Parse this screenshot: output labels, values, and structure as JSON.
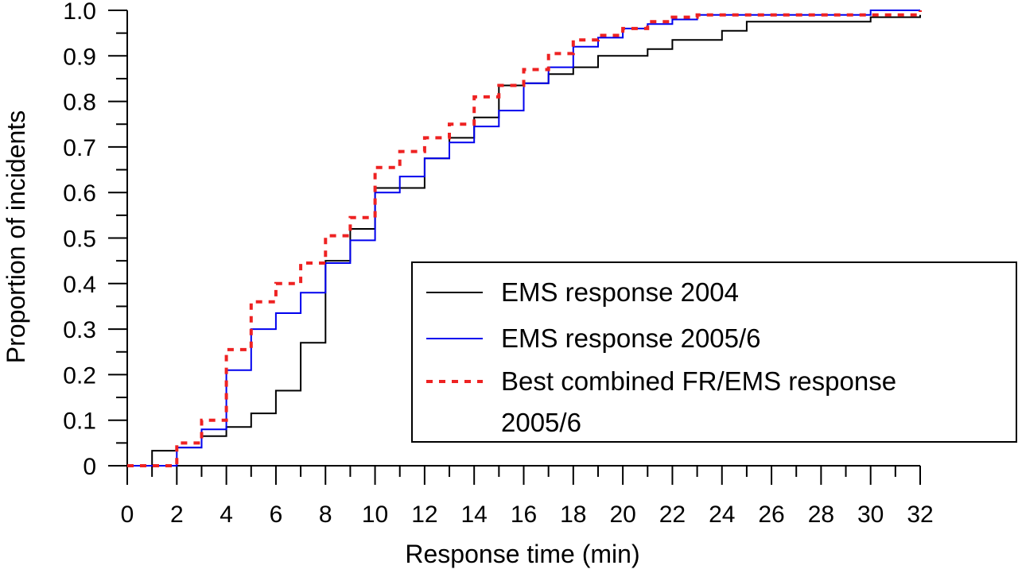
{
  "chart_data": {
    "type": "line",
    "step": true,
    "xlabel": "Response time (min)",
    "ylabel": "Proportion of incidents",
    "xlim": [
      0,
      32
    ],
    "ylim": [
      0,
      1.0
    ],
    "x_ticks": [
      "0",
      "2",
      "4",
      "6",
      "8",
      "10",
      "12",
      "14",
      "16",
      "18",
      "20",
      "22",
      "24",
      "26",
      "28",
      "30",
      "32"
    ],
    "y_ticks": [
      "0",
      "0.1",
      "0.2",
      "0.3",
      "0.4",
      "0.5",
      "0.6",
      "0.7",
      "0.8",
      "0.9",
      "1.0"
    ],
    "grid": false,
    "legend_position": "lower-right",
    "series": [
      {
        "name": "EMS response 2004",
        "color": "#000000",
        "style": "solid",
        "x": [
          0,
          1,
          2,
          3,
          4,
          5,
          6,
          7,
          8,
          9,
          10,
          11,
          12,
          13,
          14,
          15,
          16,
          17,
          18,
          19,
          20,
          21,
          22,
          23,
          24,
          25,
          30,
          32
        ],
        "y": [
          0,
          0.033,
          0.04,
          0.065,
          0.085,
          0.115,
          0.165,
          0.27,
          0.45,
          0.52,
          0.61,
          0.61,
          0.675,
          0.72,
          0.765,
          0.835,
          0.84,
          0.86,
          0.875,
          0.9,
          0.9,
          0.915,
          0.935,
          0.935,
          0.955,
          0.975,
          0.985,
          0.99
        ]
      },
      {
        "name": "EMS response 2005/6",
        "color": "#0000ee",
        "style": "solid",
        "x": [
          0,
          2,
          3,
          4,
          5,
          6,
          7,
          8,
          9,
          10,
          11,
          12,
          13,
          14,
          15,
          16,
          17,
          18,
          19,
          20,
          21,
          22,
          23,
          30,
          32
        ],
        "y": [
          0,
          0.04,
          0.08,
          0.21,
          0.3,
          0.335,
          0.38,
          0.445,
          0.495,
          0.6,
          0.635,
          0.675,
          0.71,
          0.745,
          0.78,
          0.84,
          0.875,
          0.92,
          0.94,
          0.96,
          0.97,
          0.98,
          0.99,
          1.0,
          1.0
        ]
      },
      {
        "name": "Best combined FR/EMS response 2005/6",
        "color": "#ee2222",
        "style": "dotted",
        "x": [
          0,
          2,
          3,
          4,
          5,
          6,
          7,
          8,
          9,
          10,
          11,
          12,
          13,
          14,
          15,
          16,
          17,
          18,
          19,
          20,
          21,
          22,
          23,
          32
        ],
        "y": [
          0,
          0.05,
          0.1,
          0.255,
          0.36,
          0.4,
          0.445,
          0.505,
          0.545,
          0.655,
          0.69,
          0.72,
          0.75,
          0.81,
          0.835,
          0.87,
          0.905,
          0.935,
          0.945,
          0.96,
          0.975,
          0.985,
          0.99,
          1.0
        ]
      }
    ],
    "legend": [
      {
        "lines": [
          "EMS response 2004"
        ]
      },
      {
        "lines": [
          "EMS response 2005/6"
        ]
      },
      {
        "lines": [
          "Best combined FR/EMS response",
          "2005/6"
        ]
      }
    ]
  }
}
